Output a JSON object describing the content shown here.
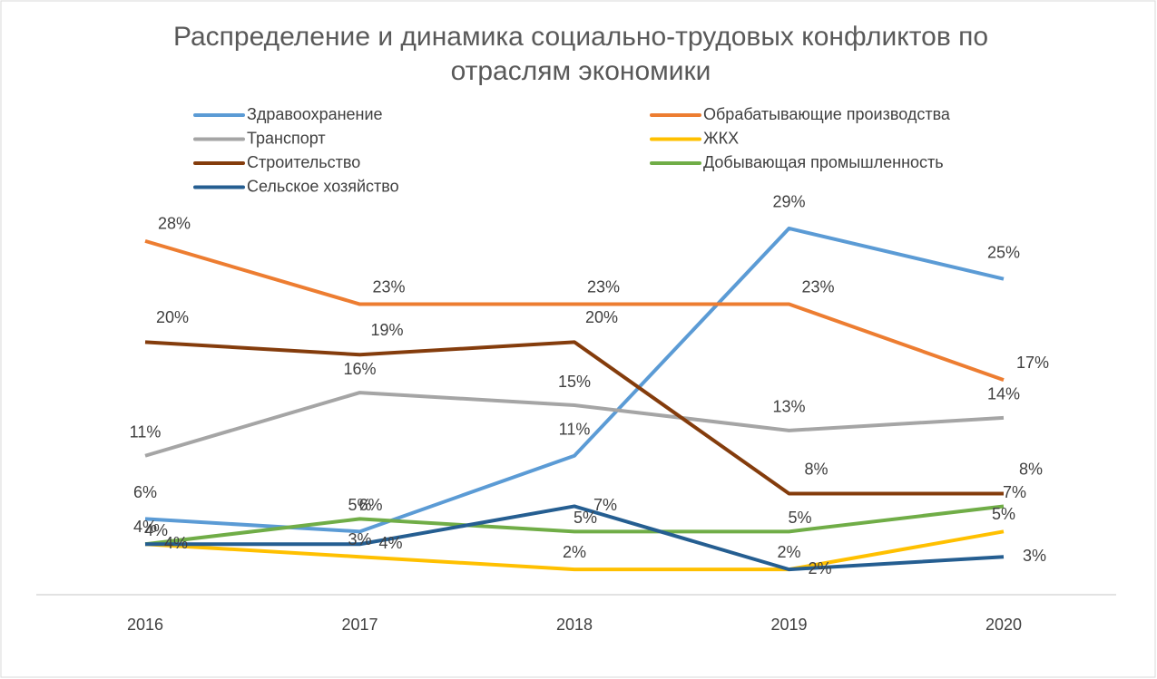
{
  "chart_data": {
    "type": "line",
    "title": "Распределение и динамика социально-трудовых конфликтов по отраслям экономики",
    "categories": [
      "2016",
      "2017",
      "2018",
      "2019",
      "2020"
    ],
    "ylim": [
      0,
      30
    ],
    "series": [
      {
        "name": "Здравоохранение",
        "color": "#5b9bd5",
        "values": [
          6,
          5,
          11,
          29,
          25
        ],
        "value_labels": [
          "6%",
          "5%",
          "11%",
          "29%",
          "25%"
        ]
      },
      {
        "name": "Обрабатывающие производства",
        "color": "#ed7d31",
        "values": [
          28,
          23,
          23,
          23,
          17
        ],
        "value_labels": [
          "28%",
          "23%",
          "23%",
          "23%",
          "17%"
        ]
      },
      {
        "name": "Транспорт",
        "color": "#a5a5a5",
        "values": [
          11,
          16,
          15,
          13,
          14
        ],
        "value_labels": [
          "11%",
          "16%",
          "15%",
          "13%",
          "14%"
        ]
      },
      {
        "name": "ЖКХ",
        "color": "#ffc000",
        "values": [
          4,
          3,
          2,
          2,
          5
        ],
        "value_labels": [
          "4%",
          "3%",
          "2%",
          "2%",
          "5%"
        ]
      },
      {
        "name": "Строительство",
        "color": "#843c0c",
        "values": [
          20,
          19,
          20,
          8,
          8
        ],
        "value_labels": [
          "20%",
          "19%",
          "20%",
          "8%",
          "8%"
        ]
      },
      {
        "name": "Добывающая промышленность",
        "color": "#70ad47",
        "values": [
          4,
          6,
          5,
          5,
          7
        ],
        "value_labels": [
          "4%",
          "6%",
          "5%",
          "5%",
          "7%"
        ]
      },
      {
        "name": "Сельское хозяйство",
        "color": "#255e91",
        "values": [
          4,
          4,
          7,
          2,
          3
        ],
        "value_labels": [
          "4%",
          "4%",
          "7%",
          "2%",
          "3%"
        ]
      }
    ]
  }
}
